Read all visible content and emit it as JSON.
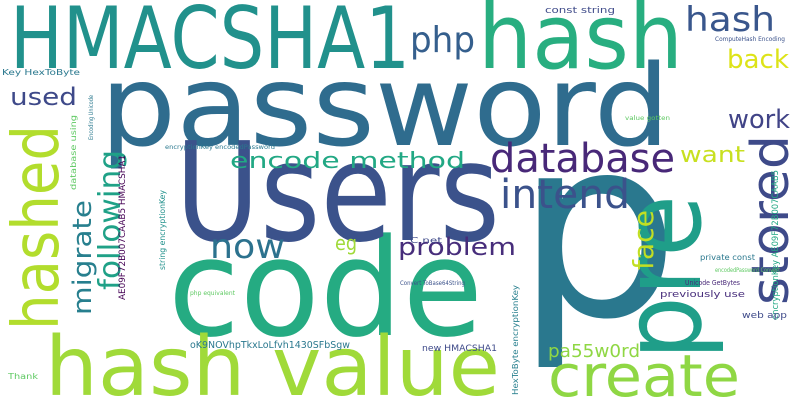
{
  "words": [
    "p",
    "password",
    "code",
    "Users",
    "HMACSHA1",
    "hash",
    "pre",
    "hash value",
    "create",
    "stored",
    "hashed",
    "database",
    "intend",
    "php",
    "hash",
    "back",
    "work",
    "used",
    "encode method",
    "want",
    "following",
    "migrate",
    "now",
    "eg",
    "problem",
    "face",
    "pa55w0rd",
    "const string",
    "ComputeHash Encoding",
    "Key HexToByte",
    "value gotten",
    "Encoding Unicode",
    "database using",
    "encryptionKey encodedPassword",
    "AE09F72B007CAAB5 HMACSHA1",
    "string encryptionKey",
    "encryptionKey AE09F72B007CAAB5",
    "C net",
    "private const",
    "encodedPassword Convert",
    "Convert ToBase64String",
    "Unicode GetBytes",
    "HexToByte encryptionKey",
    "php equivalent",
    "previously use",
    "web app",
    "oK9NOVhpTkxLoLfvh1430SFbSgw",
    "new HMACSHA1",
    "Thank"
  ]
}
